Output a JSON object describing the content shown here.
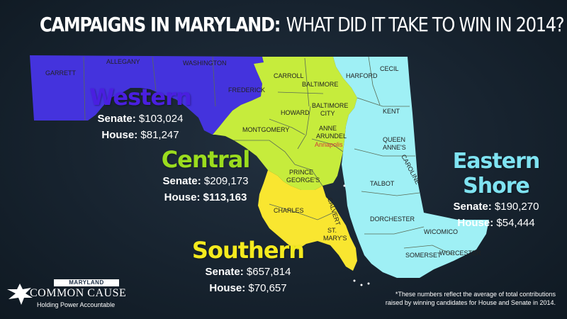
{
  "title": {
    "bold": "CAMPAIGNS IN MARYLAND:",
    "rest": "WHAT DID IT TAKE TO WIN IN 2014?"
  },
  "regions": {
    "western": {
      "name": "Western",
      "color": "#4a1fe0",
      "senate_label": "Senate:",
      "senate_value": "$103,024",
      "house_label": "House:",
      "house_value": "$81,247"
    },
    "central": {
      "name": "Central",
      "color": "#9bdc1e",
      "senate_label": "Senate:",
      "senate_value": "$209,173",
      "house_label": "House:",
      "house_value": "$113,163"
    },
    "eastern": {
      "name": "Eastern Shore",
      "color": "#7fe3f2",
      "senate_label": "Senate:",
      "senate_value": "$190,270",
      "house_label": "House:",
      "house_value": "$54,444"
    },
    "southern": {
      "name": "Southern",
      "color": "#f4ea1e",
      "senate_label": "Senate:",
      "senate_value": "$657,814",
      "house_label": "House:",
      "house_value": "$70,657"
    }
  },
  "map_colors": {
    "western": "#4433dd",
    "central": "#c6ec3c",
    "eastern": "#9ff0f5",
    "southern": "#f9e630",
    "county_line": "#5a6b55"
  },
  "counties": {
    "garrett": "GARRETT",
    "allegany": "ALLEGANY",
    "washington": "WASHINGTON",
    "frederick": "FREDERICK",
    "carroll": "CARROLL",
    "baltimore": "BALTIMORE",
    "harford": "HARFORD",
    "cecil": "CECIL",
    "howard": "HOWARD",
    "baltimore_city_1": "BALTIMORE",
    "baltimore_city_2": "CITY",
    "kent": "KENT",
    "montgomery": "MONTGOMERY",
    "anne_1": "ANNE",
    "anne_2": "ARUNDEL",
    "annapolis": "Annapolis",
    "queen_1": "QUEEN",
    "queen_2": "ANNE'S",
    "caroline": "CAROLINE",
    "prince_1": "PRINCE",
    "prince_2": "GEORGE'S",
    "talbot": "TALBOT",
    "charles": "CHARLES",
    "calvert": "CALVERT",
    "dorchester": "DORCHESTER",
    "wicomico": "WICOMICO",
    "stmarys_1": "ST.",
    "stmarys_2": "MARY'S",
    "somerset": "SOMERSET",
    "worcester": "WORCESTER"
  },
  "footnote": {
    "line1": "*These numbers reflect the average of total contributions",
    "line2": "raised by winning candidates for House and Senate in 2014."
  },
  "logo": {
    "state": "MARYLAND",
    "name": "COMMON CAUSE",
    "tagline": "Holding Power Accountable",
    "icon": "eagle-icon"
  }
}
